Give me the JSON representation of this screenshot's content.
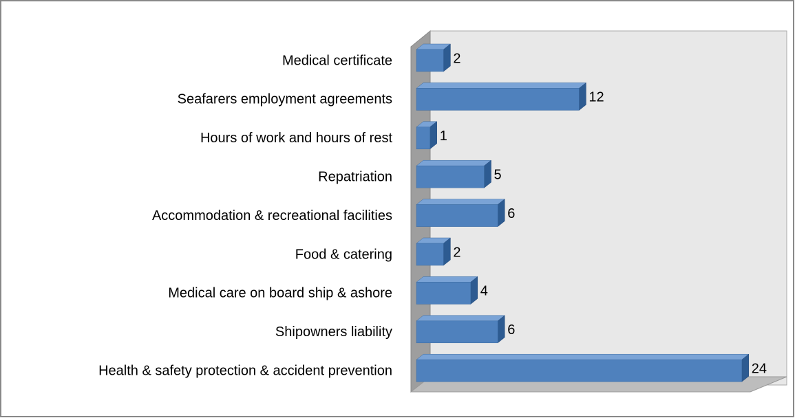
{
  "chart_data": {
    "type": "bar3d_horizontal",
    "categories": [
      "Medical certificate",
      "Seafarers employment agreements",
      "Hours of work and hours of rest",
      "Repatriation",
      "Accommodation & recreational facilities",
      "Food & catering",
      "Medical care on board ship & ashore",
      "Shipowners liability",
      "Health & safety protection & accident prevention"
    ],
    "values": [
      2,
      12,
      1,
      5,
      6,
      2,
      4,
      6,
      24
    ],
    "color": "#4f81bd"
  }
}
